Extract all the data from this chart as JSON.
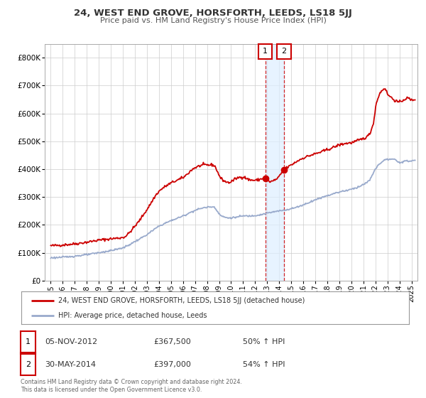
{
  "title": "24, WEST END GROVE, HORSFORTH, LEEDS, LS18 5JJ",
  "subtitle": "Price paid vs. HM Land Registry's House Price Index (HPI)",
  "xlim": [
    1994.5,
    2025.5
  ],
  "ylim": [
    0,
    850000
  ],
  "yticks": [
    0,
    100000,
    200000,
    300000,
    400000,
    500000,
    600000,
    700000,
    800000
  ],
  "ytick_labels": [
    "£0",
    "£100K",
    "£200K",
    "£300K",
    "£400K",
    "£500K",
    "£600K",
    "£700K",
    "£800K"
  ],
  "xticks": [
    1995,
    1996,
    1997,
    1998,
    1999,
    2000,
    2001,
    2002,
    2003,
    2004,
    2005,
    2006,
    2007,
    2008,
    2009,
    2010,
    2011,
    2012,
    2013,
    2014,
    2015,
    2016,
    2017,
    2018,
    2019,
    2020,
    2021,
    2022,
    2023,
    2024,
    2025
  ],
  "property_color": "#cc0000",
  "hpi_color": "#99aacc",
  "marker1_x": 2012.84,
  "marker1_y": 367500,
  "marker2_x": 2014.41,
  "marker2_y": 397000,
  "vline1_x": 2012.84,
  "vline2_x": 2014.41,
  "shade_x1": 2012.84,
  "shade_x2": 2014.41,
  "legend_line1": "24, WEST END GROVE, HORSFORTH, LEEDS, LS18 5JJ (detached house)",
  "legend_line2": "HPI: Average price, detached house, Leeds",
  "annotation1_date": "05-NOV-2012",
  "annotation1_price": "£367,500",
  "annotation1_hpi": "50% ↑ HPI",
  "annotation2_date": "30-MAY-2014",
  "annotation2_price": "£397,000",
  "annotation2_hpi": "54% ↑ HPI",
  "footnote": "Contains HM Land Registry data © Crown copyright and database right 2024.\nThis data is licensed under the Open Government Licence v3.0.",
  "background_color": "#ffffff",
  "grid_color": "#cccccc"
}
